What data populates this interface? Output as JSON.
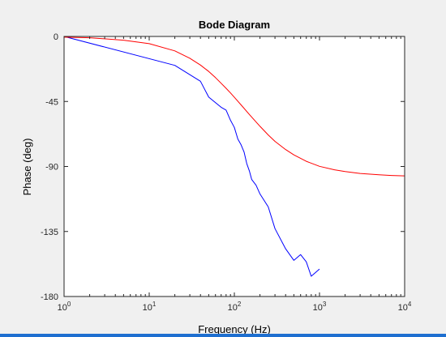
{
  "colors": {
    "figure_background": "#f0f0f0",
    "axes_background": "#ffffff",
    "axes_edge": "#262626",
    "measured": "#0000ff",
    "model": "#ff0000",
    "status_bar": "#1e6fd0"
  },
  "chart_data": {
    "type": "line",
    "title": "Bode Diagram",
    "xlabel": "Frequency  (Hz)",
    "ylabel": "Phase (deg)",
    "xscale": "log",
    "xlim": [
      1,
      10000
    ],
    "ylim": [
      -180,
      0
    ],
    "grid": false,
    "legend": "none",
    "x_ticks": [
      {
        "value": 1,
        "base": "10",
        "exp": "0"
      },
      {
        "value": 10,
        "base": "10",
        "exp": "1"
      },
      {
        "value": 100,
        "base": "10",
        "exp": "2"
      },
      {
        "value": 1000,
        "base": "10",
        "exp": "3"
      },
      {
        "value": 10000,
        "base": "10",
        "exp": "4"
      }
    ],
    "y_ticks": [
      {
        "value": 0,
        "label": "0"
      },
      {
        "value": -45,
        "label": "-45"
      },
      {
        "value": -90,
        "label": "-90"
      },
      {
        "value": -135,
        "label": "-135"
      },
      {
        "value": -180,
        "label": "-180"
      }
    ],
    "series": [
      {
        "color": "#0000ff",
        "x": [
          1,
          20,
          40,
          50,
          70,
          80,
          90,
          100,
          110,
          120,
          130,
          140,
          150,
          160,
          180,
          200,
          250,
          300,
          400,
          500,
          600,
          700,
          800,
          1000
        ],
        "y": [
          0,
          -20,
          -31,
          -42,
          -49,
          -51,
          -58,
          -63,
          -71,
          -75,
          -80,
          -88,
          -93,
          -99,
          -103,
          -109,
          -118,
          -133,
          -147,
          -155,
          -151,
          -156,
          -166,
          -161
        ]
      },
      {
        "color": "#ff0000",
        "x": [
          1,
          2,
          5,
          10,
          20,
          30,
          40,
          50,
          60,
          70,
          80,
          90,
          100,
          120,
          150,
          200,
          250,
          300,
          400,
          500,
          700,
          1000,
          1500,
          2000,
          3000,
          5000,
          7000,
          10000
        ],
        "y": [
          -0.5,
          -0.9,
          -2.6,
          -5.0,
          -10.0,
          -15.1,
          -19.8,
          -24.2,
          -28.5,
          -32.4,
          -35.9,
          -39.1,
          -42.1,
          -47.4,
          -54.0,
          -62.2,
          -68.2,
          -72.6,
          -78.3,
          -82.0,
          -86.4,
          -89.9,
          -92.3,
          -93.5,
          -94.8,
          -95.8,
          -96.2,
          -96.5
        ]
      }
    ]
  }
}
